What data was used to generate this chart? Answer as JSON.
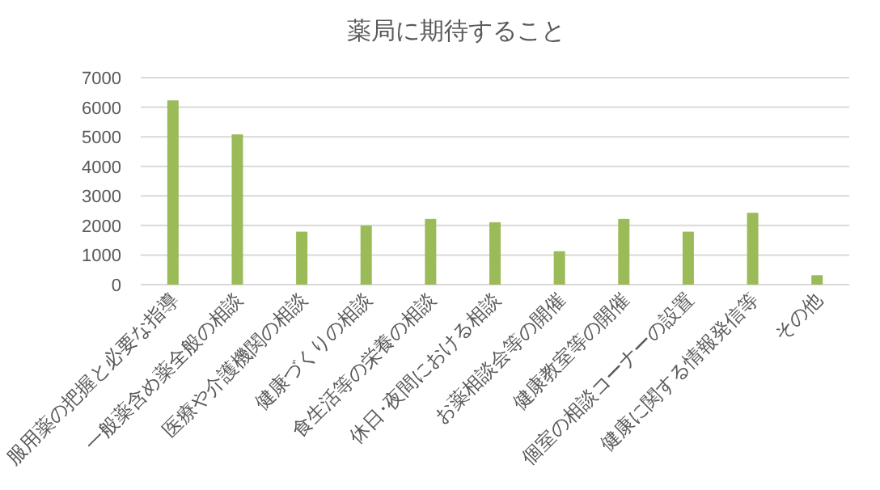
{
  "chart_data": {
    "type": "bar",
    "title": "薬局に期待すること",
    "categories": [
      "服用薬の把握と必要な指導",
      "一般薬含め薬全般の相談",
      "医療や介護機関の相談",
      "健康づくりの相談",
      "食生活等の栄養の相談",
      "休日･夜間における相談",
      "お薬相談会等の開催",
      "健康教室等の開催",
      "個室の相談コーナーの設置",
      "健康に関する情報発信等",
      "その他"
    ],
    "values": [
      6230,
      5080,
      1790,
      2000,
      2220,
      2110,
      1130,
      2220,
      1790,
      2430,
      320
    ],
    "color": "#9bbb59",
    "ylim": [
      0,
      7000
    ],
    "yticks": [
      0,
      1000,
      2000,
      3000,
      4000,
      5000,
      6000,
      7000
    ],
    "grid": "y"
  }
}
